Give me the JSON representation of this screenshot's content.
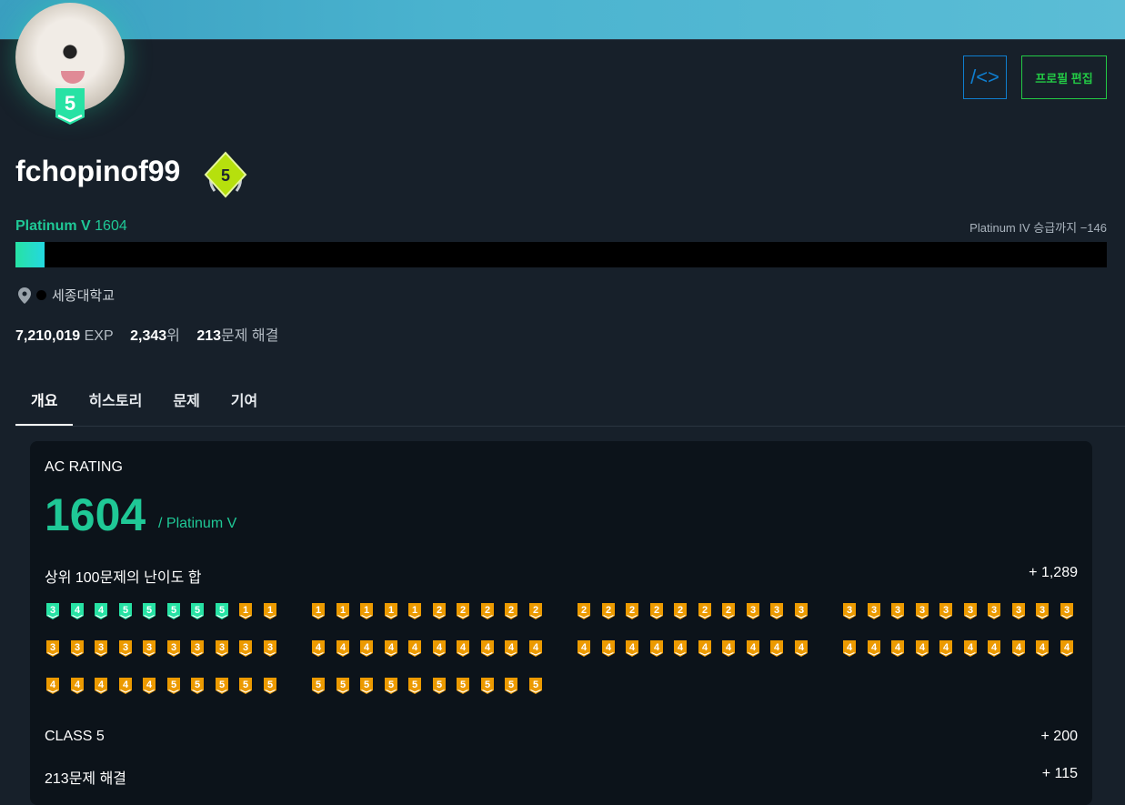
{
  "profile": {
    "username": "fchopinof99",
    "tier_level": "5",
    "class_level": "5",
    "tier_name": "Platinum V",
    "rating": "1604",
    "next_tier_text": "Platinum IV 승급까지 −146",
    "progress_percent": 2.7,
    "organization": "세종대학교",
    "exp_value": "7,210,019",
    "exp_unit": " EXP",
    "rank_value": "2,343",
    "rank_unit": "위",
    "solved_value": "213",
    "solved_unit": "문제 해결"
  },
  "buttons": {
    "code_icon_label": "/<>",
    "edit_profile": "프로필 편집"
  },
  "tabs": [
    {
      "label": "개요",
      "active": true
    },
    {
      "label": "히스토리"
    },
    {
      "label": "문제"
    },
    {
      "label": "기여"
    }
  ],
  "ac_rating": {
    "title": "AC RATING",
    "value": "1604",
    "tier": "/ Platinum V",
    "rows": [
      {
        "label": "상위 100문제의 난이도 합",
        "value": "+ 1,289"
      },
      {
        "label": "CLASS 5",
        "value": "+ 200"
      },
      {
        "label": "213문제 해결",
        "value": "+ 115"
      }
    ],
    "top100": [
      "P3",
      "P4",
      "P4",
      "P5",
      "P5",
      "P5",
      "P5",
      "P5",
      "G1",
      "G1",
      "G1",
      "G1",
      "G1",
      "G1",
      "G1",
      "G2",
      "G2",
      "G2",
      "G2",
      "G2",
      "G2",
      "G2",
      "G2",
      "G2",
      "G2",
      "G2",
      "G2",
      "G3",
      "G3",
      "G3",
      "G3",
      "G3",
      "G3",
      "G3",
      "G3",
      "G3",
      "G3",
      "G3",
      "G3",
      "G3",
      "G3",
      "G3",
      "G3",
      "G3",
      "G3",
      "G3",
      "G3",
      "G3",
      "G3",
      "G3",
      "G4",
      "G4",
      "G4",
      "G4",
      "G4",
      "G4",
      "G4",
      "G4",
      "G4",
      "G4",
      "G4",
      "G4",
      "G4",
      "G4",
      "G4",
      "G4",
      "G4",
      "G4",
      "G4",
      "G4",
      "G4",
      "G4",
      "G4",
      "G4",
      "G4",
      "G4",
      "G4",
      "G4",
      "G4",
      "G4",
      "G4",
      "G4",
      "G4",
      "G4",
      "G4",
      "G5",
      "G5",
      "G5",
      "G5",
      "G5",
      "G5",
      "G5",
      "G5",
      "G5",
      "G5",
      "G5",
      "G5",
      "G5",
      "G5",
      "G5"
    ]
  },
  "colors": {
    "platinum": "#27e2a4",
    "gold": "#ec9a00",
    "accent": "#1fc896",
    "code_button": "#0f7ecf",
    "edit_button": "#23c945"
  }
}
